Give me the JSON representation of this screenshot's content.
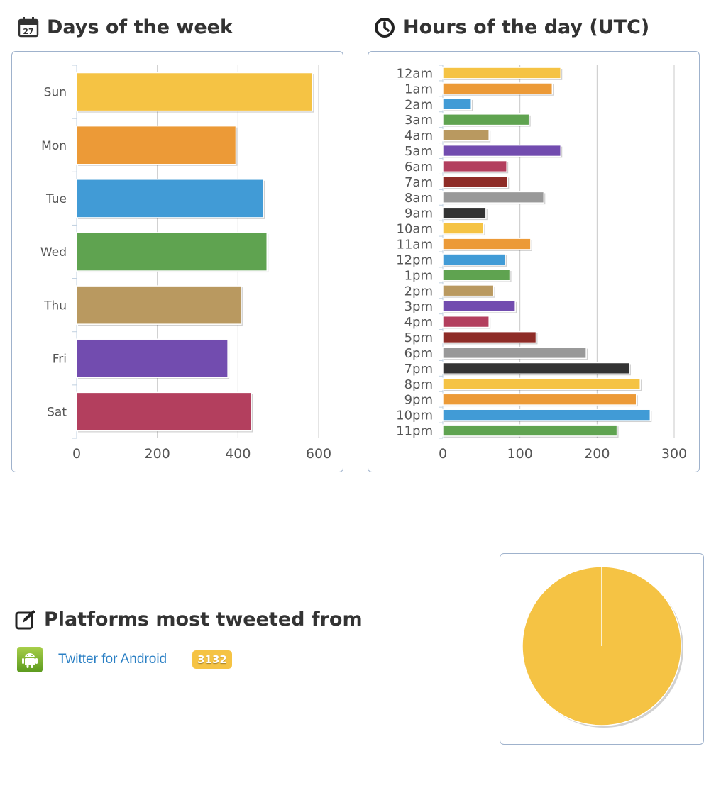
{
  "days_section": {
    "title": "Days of the week",
    "icon": "calendar-icon",
    "calendar_day": "27"
  },
  "hours_section": {
    "title": "Hours of the day (UTC)",
    "icon": "clock-icon"
  },
  "platforms_section": {
    "title": "Platforms most tweeted from",
    "icon": "compose-icon",
    "items": [
      {
        "name": "Twitter for Android",
        "count": "3132",
        "icon": "android-icon"
      }
    ]
  },
  "chart_data": [
    {
      "type": "bar",
      "orientation": "horizontal",
      "title": "Days of the week",
      "categories": [
        "Sun",
        "Mon",
        "Tue",
        "Wed",
        "Thu",
        "Fri",
        "Sat"
      ],
      "values": [
        585,
        395,
        463,
        472,
        408,
        375,
        433
      ],
      "colors": [
        "#f5c344",
        "#ec9a37",
        "#419bd6",
        "#5fa350",
        "#b99960",
        "#724caf",
        "#b33f5e"
      ],
      "xlim": [
        0,
        600
      ],
      "xticks": [
        0,
        200,
        400,
        600
      ]
    },
    {
      "type": "bar",
      "orientation": "horizontal",
      "title": "Hours of the day (UTC)",
      "categories": [
        "12am",
        "1am",
        "2am",
        "3am",
        "4am",
        "5am",
        "6am",
        "7am",
        "8am",
        "9am",
        "10am",
        "11am",
        "12pm",
        "1pm",
        "2pm",
        "3pm",
        "4pm",
        "5pm",
        "6pm",
        "7pm",
        "8pm",
        "9pm",
        "10pm",
        "11pm"
      ],
      "values": [
        153,
        142,
        37,
        112,
        60,
        153,
        83,
        84,
        131,
        56,
        53,
        114,
        81,
        87,
        66,
        94,
        60,
        121,
        186,
        242,
        256,
        251,
        269,
        226
      ],
      "colors": [
        "#f5c344",
        "#ec9a37",
        "#419bd6",
        "#5fa350",
        "#b99960",
        "#724caf",
        "#b33f5e",
        "#8e2c27",
        "#999999",
        "#333333",
        "#f5c344",
        "#ec9a37",
        "#419bd6",
        "#5fa350",
        "#b99960",
        "#724caf",
        "#b33f5e",
        "#8e2c27",
        "#999999",
        "#333333",
        "#f5c344",
        "#ec9a37",
        "#419bd6",
        "#5fa350"
      ],
      "xlim": [
        0,
        300
      ],
      "xticks": [
        0,
        100,
        200,
        300
      ]
    },
    {
      "type": "pie",
      "title": "Platforms most tweeted from",
      "labels": [
        "Twitter for Android"
      ],
      "values": [
        3132
      ],
      "colors": [
        "#f5c344"
      ]
    }
  ]
}
